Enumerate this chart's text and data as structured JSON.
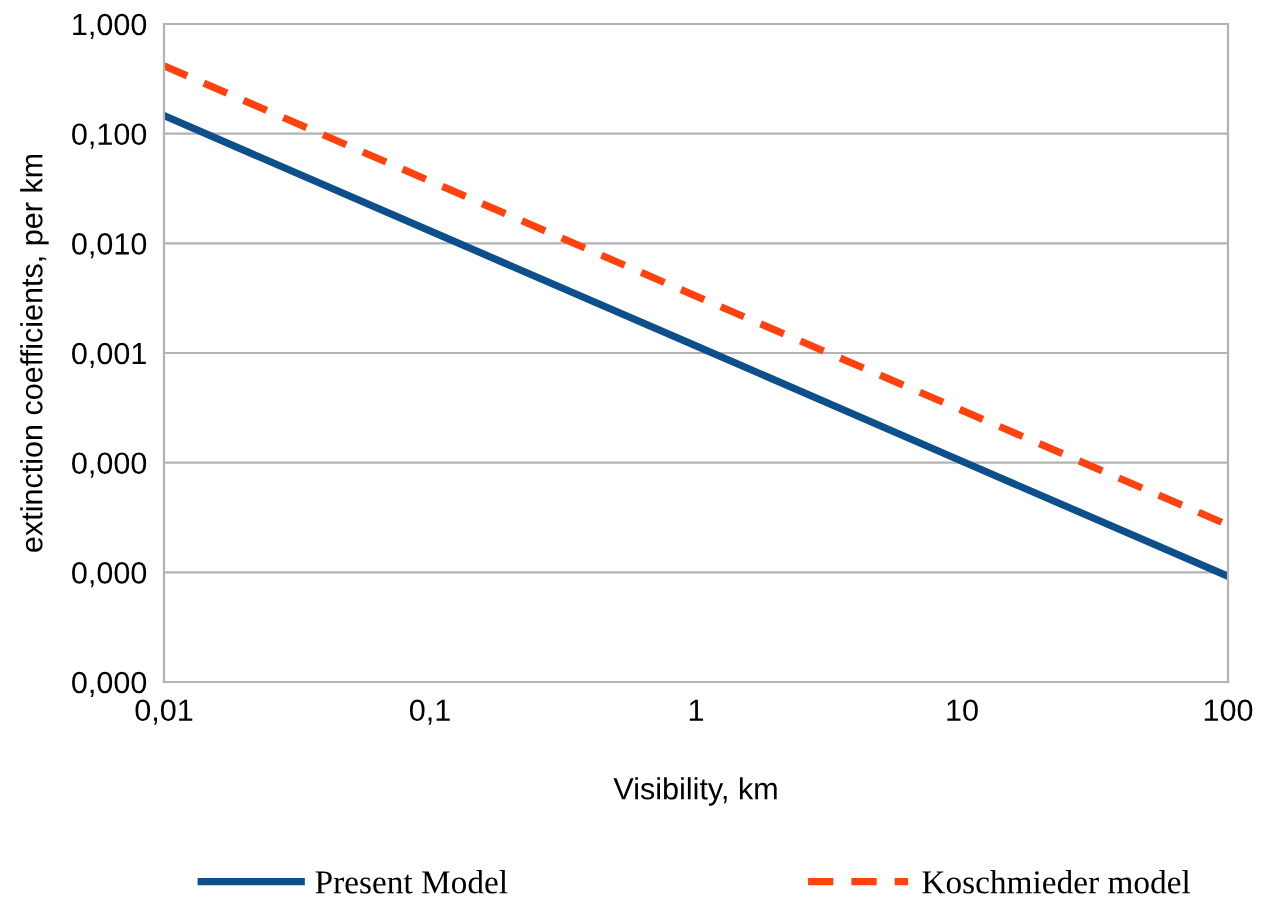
{
  "chart_data": {
    "type": "line",
    "xlabel": "Visibility, km",
    "ylabel": "extinction coefficients, per km",
    "log": "xy",
    "xlim": [
      0.01,
      100
    ],
    "ylim": [
      1e-06,
      1
    ],
    "xticks": [
      {
        "value": 0.01,
        "label": "0,01"
      },
      {
        "value": 0.1,
        "label": "0,1"
      },
      1,
      10,
      100
    ],
    "yticks": [
      {
        "value": 1e-06,
        "label": "0,000"
      },
      {
        "value": 1e-05,
        "label": "0,000"
      },
      {
        "value": 0.0001,
        "label": "0,000"
      },
      {
        "value": 0.001,
        "label": "0,001"
      },
      {
        "value": 0.01,
        "label": "0,010"
      },
      {
        "value": 0.1,
        "label": "0,100"
      },
      {
        "value": 1,
        "label": "1,000"
      }
    ],
    "grid": "y",
    "legend": "bottom",
    "marker": "none",
    "series": [
      {
        "name": "Present Model",
        "color": "#0d4f8b",
        "line_style": "solid",
        "x": [
          0.01,
          0.1,
          1,
          10,
          100
        ],
        "values": [
          0.146,
          0.013,
          0.00116,
          0.000103,
          9.2e-06
        ]
      },
      {
        "name": "Koschmieder model",
        "color": "#ff420e",
        "line_style": "dashed",
        "x": [
          0.01,
          0.1,
          1,
          10,
          100
        ],
        "values": [
          0.415,
          0.037,
          0.0033,
          0.0003,
          2.7e-05
        ]
      }
    ]
  }
}
